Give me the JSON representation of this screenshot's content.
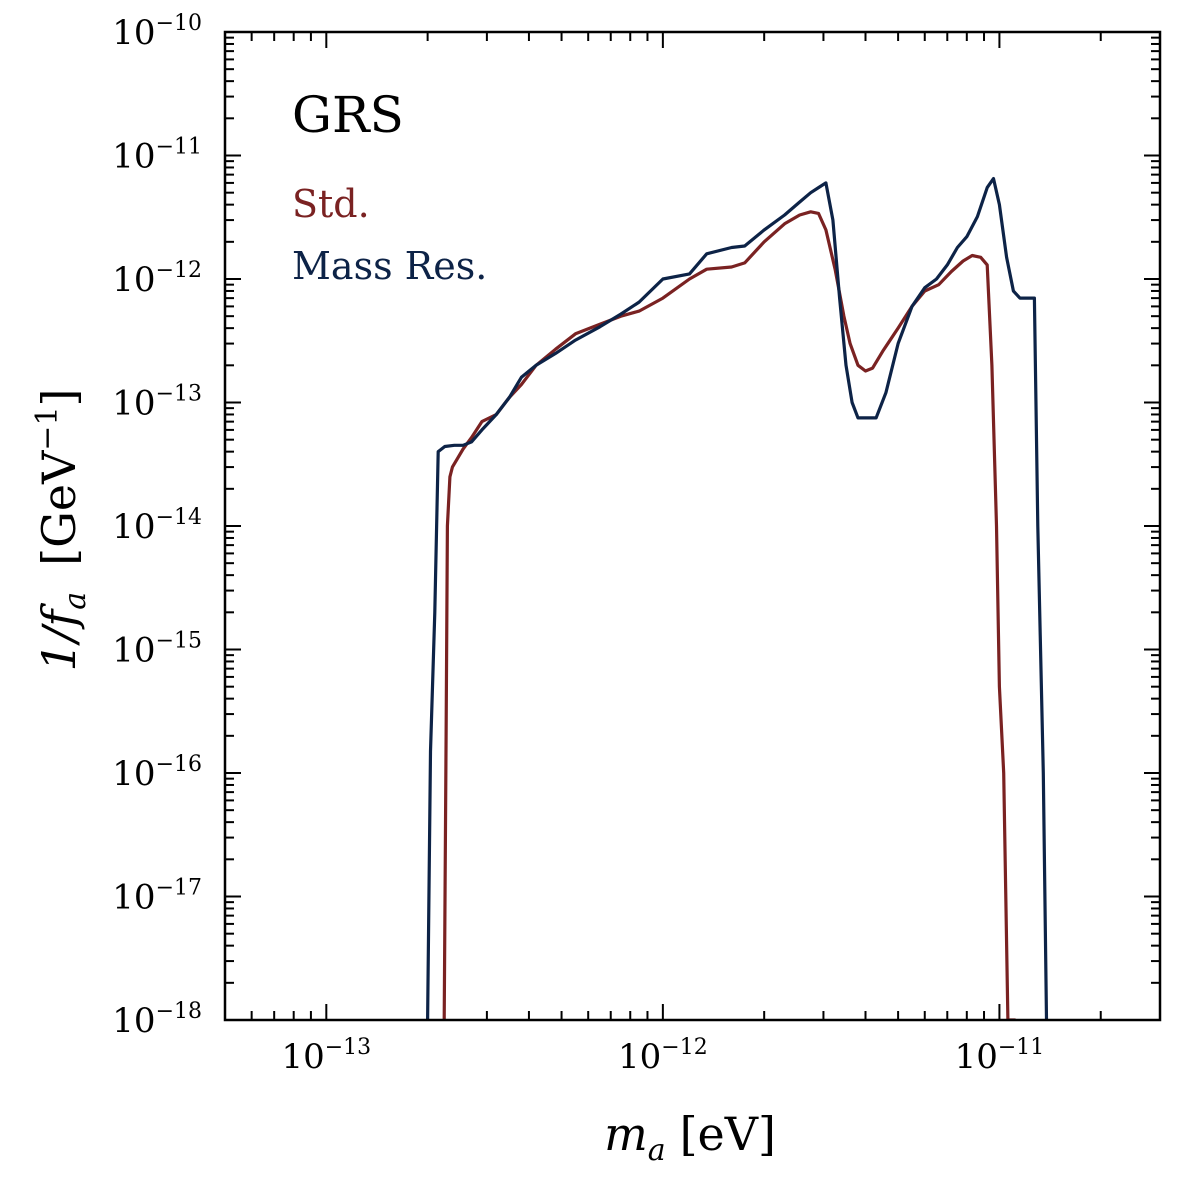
{
  "chart_data": {
    "type": "line",
    "title": "",
    "xlabel": {
      "main": "m",
      "sub": "a",
      "unit": "[eV]"
    },
    "ylabel": {
      "prefix": "1/f",
      "sub": "a",
      "unit_open": "[GeV",
      "unit_exp": "−1",
      "unit_close": "]"
    },
    "x_scale": "log",
    "y_scale": "log",
    "xlim": [
      5e-14,
      3e-11
    ],
    "ylim": [
      1e-18,
      1e-10
    ],
    "x_ticks": [
      {
        "base": "10",
        "exp": "−13",
        "value": 1e-13
      },
      {
        "base": "10",
        "exp": "−12",
        "value": 1e-12
      },
      {
        "base": "10",
        "exp": "−11",
        "value": 1e-11
      }
    ],
    "y_ticks": [
      {
        "base": "10",
        "exp": "−10",
        "value": 1e-10
      },
      {
        "base": "10",
        "exp": "−11",
        "value": 1e-11
      },
      {
        "base": "10",
        "exp": "−12",
        "value": 1e-12
      },
      {
        "base": "10",
        "exp": "−13",
        "value": 1e-13
      },
      {
        "base": "10",
        "exp": "−14",
        "value": 1e-14
      },
      {
        "base": "10",
        "exp": "−15",
        "value": 1e-15
      },
      {
        "base": "10",
        "exp": "−16",
        "value": 1e-16
      },
      {
        "base": "10",
        "exp": "−17",
        "value": 1e-17
      },
      {
        "base": "10",
        "exp": "−18",
        "value": 1e-18
      }
    ],
    "annotation": {
      "text": "GRS",
      "color": "#000000"
    },
    "legend_placement": "top-left",
    "series": [
      {
        "name": "Std.",
        "color": "#7a2222",
        "x": [
          2.24e-13,
          2.27e-13,
          2.29e-13,
          2.33e-13,
          2.37e-13,
          2.45e-13,
          2.55e-13,
          2.7e-13,
          2.9e-13,
          3.2e-13,
          3.5e-13,
          3.8e-13,
          4.2e-13,
          4.8e-13,
          5.5e-13,
          6.5e-13,
          7.5e-13,
          8.5e-13,
          1e-12,
          1.2e-12,
          1.35e-12,
          1.6e-12,
          1.75e-12,
          2e-12,
          2.3e-12,
          2.55e-12,
          2.75e-12,
          2.9e-12,
          3.05e-12,
          3.25e-12,
          3.45e-12,
          3.6e-12,
          3.8e-12,
          4e-12,
          4.2e-12,
          4.5e-12,
          5e-12,
          5.5e-12,
          6e-12,
          6.6e-12,
          7.2e-12,
          7.8e-12,
          8.3e-12,
          8.8e-12,
          9.2e-12,
          9.5e-12,
          9.8e-12,
          1e-11,
          1.03e-11,
          1.06e-11,
          1.09e-11,
          1.11e-11
        ],
        "y": [
          1e-18,
          2e-16,
          1e-14,
          2.5e-14,
          3e-14,
          3.5e-14,
          4.2e-14,
          5.2e-14,
          7e-14,
          8e-14,
          1.1e-13,
          1.4e-13,
          2e-13,
          2.7e-13,
          3.6e-13,
          4.3e-13,
          5e-13,
          5.5e-13,
          7e-13,
          1e-12,
          1.2e-12,
          1.25e-12,
          1.35e-12,
          2e-12,
          2.8e-12,
          3.3e-12,
          3.5e-12,
          3.4e-12,
          2.5e-12,
          1.2e-12,
          5e-13,
          3e-13,
          2e-13,
          1.8e-13,
          1.9e-13,
          2.6e-13,
          4e-13,
          6e-13,
          8e-13,
          9e-13,
          1.15e-12,
          1.4e-12,
          1.55e-12,
          1.5e-12,
          1.3e-12,
          2e-13,
          1e-14,
          5e-16,
          1e-16,
          1e-18,
          1e-18,
          1e-18
        ]
      },
      {
        "name": "Mass Res.",
        "color": "#0d2347",
        "x": [
          2e-13,
          2.04e-13,
          2.1e-13,
          2.15e-13,
          2.25e-13,
          2.4e-13,
          2.55e-13,
          2.7e-13,
          2.9e-13,
          3.2e-13,
          3.5e-13,
          3.8e-13,
          4.2e-13,
          4.8e-13,
          5.5e-13,
          6.5e-13,
          7.5e-13,
          8.5e-13,
          1e-12,
          1.2e-12,
          1.35e-12,
          1.6e-12,
          1.75e-12,
          2e-12,
          2.3e-12,
          2.55e-12,
          2.75e-12,
          2.9e-12,
          3.05e-12,
          3.2e-12,
          3.35e-12,
          3.5e-12,
          3.65e-12,
          3.8e-12,
          4e-12,
          4.3e-12,
          4.6e-12,
          5e-12,
          5.5e-12,
          6e-12,
          6.5e-12,
          7e-12,
          7.5e-12,
          8e-12,
          8.6e-12,
          9.2e-12,
          9.6e-12,
          1e-11,
          1.05e-11,
          1.1e-11,
          1.15e-11,
          1.22e-11,
          1.27e-11,
          1.3e-11,
          1.35e-11,
          1.38e-11
        ],
        "y": [
          1e-18,
          1.5e-16,
          2e-15,
          4e-14,
          4.4e-14,
          4.5e-14,
          4.5e-14,
          4.8e-14,
          6e-14,
          8e-14,
          1.1e-13,
          1.6e-13,
          2e-13,
          2.5e-13,
          3.2e-13,
          4.1e-13,
          5.2e-13,
          6.5e-13,
          1e-12,
          1.1e-12,
          1.6e-12,
          1.8e-12,
          1.85e-12,
          2.5e-12,
          3.3e-12,
          4.2e-12,
          5e-12,
          5.5e-12,
          6e-12,
          3e-12,
          7e-13,
          2e-13,
          1e-13,
          7.5e-14,
          7.5e-14,
          7.5e-14,
          1.2e-13,
          3e-13,
          6e-13,
          8.5e-13,
          1e-12,
          1.3e-12,
          1.8e-12,
          2.2e-12,
          3.2e-12,
          5.5e-12,
          6.5e-12,
          4e-12,
          1.5e-12,
          8e-13,
          7e-13,
          7e-13,
          7e-13,
          1e-14,
          1e-16,
          1e-18
        ]
      }
    ]
  }
}
